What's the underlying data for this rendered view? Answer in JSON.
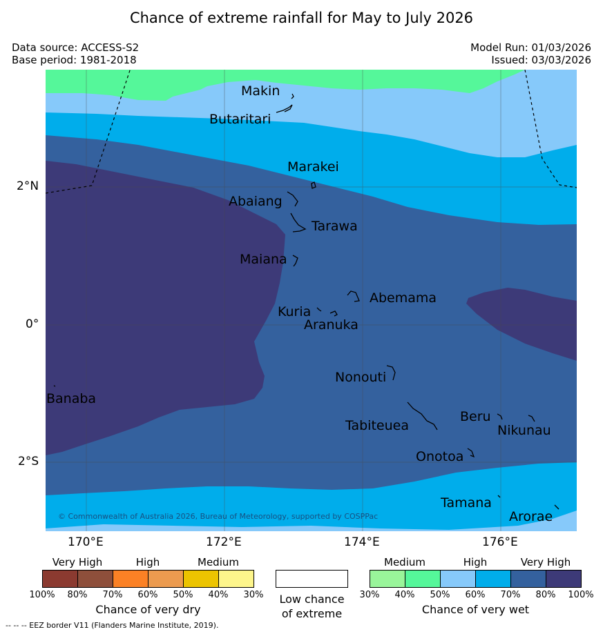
{
  "header": {
    "title": "Chance of extreme rainfall for May to July 2026",
    "data_source": "Data source: ACCESS-S2",
    "base_period": "Base period: 1981-2018",
    "model_run": "Model Run: 01/03/2026",
    "issued": "Issued: 03/03/2026"
  },
  "map": {
    "places": [
      "Makin",
      "Butaritari",
      "Marakei",
      "Abaiang",
      "Tarawa",
      "Maiana",
      "Abemama",
      "Kuria",
      "Aranuka",
      "Nonouti",
      "Banaba",
      "Tabiteuea",
      "Beru",
      "Nikunau",
      "Onotoa",
      "Tamana",
      "Arorae"
    ],
    "lat_labels": [
      "2°N",
      "0°",
      "2°S"
    ],
    "lon_labels": [
      "170°E",
      "172°E",
      "174°E",
      "176°E"
    ],
    "copyright": "© Commonwealth of Australia 2026, Bureau of Meteorology, supported by COSPPac",
    "colors": {
      "wet_30_40": "#99f59a",
      "wet_40_50": "#55f79a",
      "wet_50_60": "#86c9fa",
      "wet_60_70": "#00adeb",
      "wet_70_80": "#34619e",
      "wet_80_100": "#3d3a78",
      "eez": "#000000"
    }
  },
  "legend": {
    "dry": {
      "categories": [
        "Very High",
        "High",
        "Medium"
      ],
      "ticks": [
        "100%",
        "80%",
        "70%",
        "60%",
        "50%",
        "40%",
        "30%"
      ],
      "colors": [
        "#8b3a30",
        "#8e4f3b",
        "#fb8125",
        "#ec9b4f",
        "#ecc400",
        "#fdf58b"
      ],
      "caption": "Chance of very dry"
    },
    "neutral": {
      "caption_line1": "Low chance",
      "caption_line2": "of extreme",
      "color": "#ffffff"
    },
    "wet": {
      "categories": [
        "Medium",
        "High",
        "Very High"
      ],
      "ticks": [
        "30%",
        "40%",
        "50%",
        "60%",
        "70%",
        "80%",
        "100%"
      ],
      "colors": [
        "#99f59a",
        "#55f79a",
        "#86c9fa",
        "#00adeb",
        "#34619e",
        "#3d3a78"
      ],
      "caption": "Chance of very wet"
    }
  },
  "footer": "--  --  -- EEZ border V11 (Flanders Marine Institute, 2019)."
}
